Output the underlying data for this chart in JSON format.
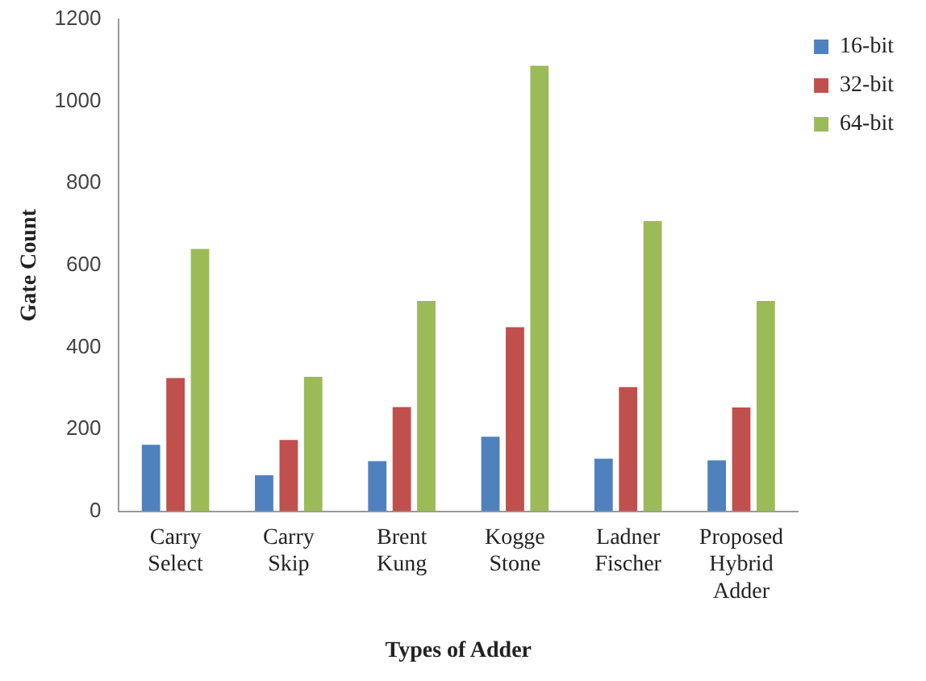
{
  "chart_data": {
    "type": "bar",
    "xlabel": "Types of Adder",
    "ylabel": "Gate Count",
    "categories": [
      "Carry Select",
      "Carry Skip",
      "Brent Kung",
      "Kogge Stone",
      "Ladner Fischer",
      "Proposed Hybrid Adder"
    ],
    "series": [
      {
        "name": "16-bit",
        "color": "#4f81bd",
        "values": [
          162,
          88,
          122,
          182,
          128,
          124
        ]
      },
      {
        "name": "32-bit",
        "color": "#c0504d",
        "values": [
          325,
          174,
          254,
          449,
          303,
          253
        ]
      },
      {
        "name": "64-bit",
        "color": "#9bbb59",
        "values": [
          640,
          328,
          513,
          1087,
          708,
          513
        ]
      }
    ],
    "ylim": [
      0,
      1200
    ],
    "yticks": [
      0,
      200,
      400,
      600,
      800,
      1000,
      1200
    ],
    "grid": false,
    "legend": "top right"
  }
}
